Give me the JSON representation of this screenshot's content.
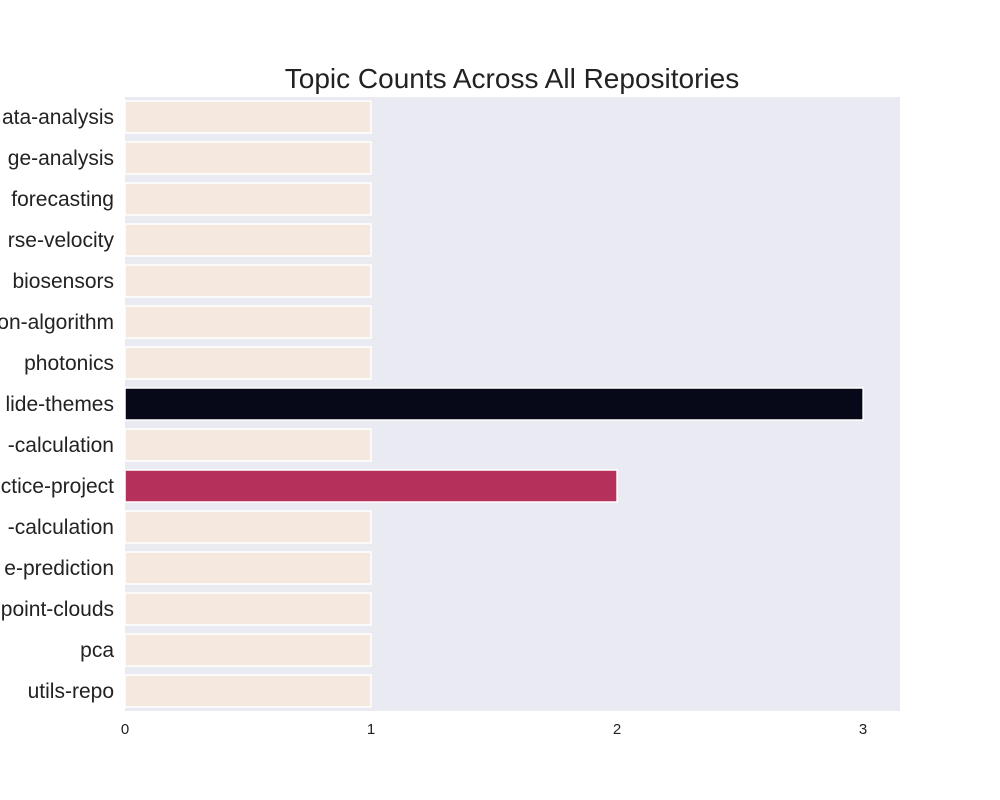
{
  "chart_data": {
    "type": "bar",
    "orientation": "horizontal",
    "title": "Topic Counts Across All Repositories",
    "xlabel": "",
    "ylabel": "",
    "categories": [
      "ata-analysis",
      "ge-analysis",
      "forecasting",
      "rse-velocity",
      "biosensors",
      "on-algorithm",
      "photonics",
      "lide-themes",
      "-calculation",
      "ctice-project",
      "-calculation",
      "e-prediction",
      "point-clouds",
      "pca",
      "utils-repo"
    ],
    "values": [
      1,
      1,
      1,
      1,
      1,
      1,
      1,
      3,
      1,
      2,
      1,
      1,
      1,
      1,
      1
    ],
    "bar_colors": [
      "#f5e9df",
      "#f5e9df",
      "#f5e9df",
      "#f5e9df",
      "#f5e9df",
      "#f5e9df",
      "#f5e9df",
      "#070818",
      "#f5e9df",
      "#b5305a",
      "#f5e9df",
      "#f5e9df",
      "#f5e9df",
      "#f5e9df",
      "#f5e9df"
    ],
    "xlim": [
      0,
      3.15
    ],
    "xticks": [
      0,
      1,
      2,
      3
    ],
    "xtick_labels": [
      "0",
      "1",
      "2",
      "3"
    ],
    "grid": false,
    "legend": "none",
    "colors": {
      "plot_background": "#eaeaf2",
      "page_background": "#ffffff",
      "text": "#222222",
      "bar_edge": "#ffffff"
    }
  }
}
